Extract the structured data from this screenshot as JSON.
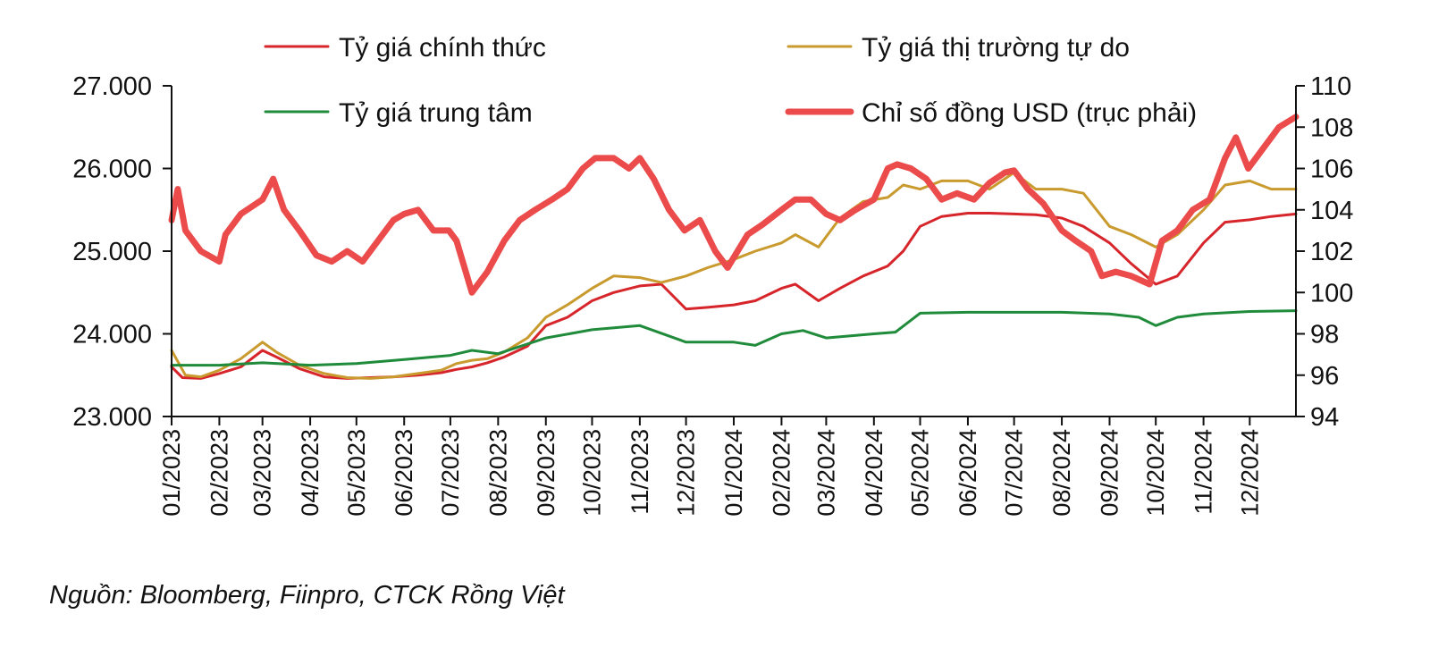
{
  "source_note": "Nguồn: Bloomberg, Fiinpro, CTCK Rồng Việt",
  "chart_data": {
    "type": "line",
    "title": "",
    "xlabel": "",
    "ylabel": "",
    "legend_position": "top",
    "grid": false,
    "y_left": {
      "range": [
        23000,
        27000
      ],
      "ticks": [
        23000,
        24000,
        25000,
        26000,
        27000
      ],
      "tick_labels": [
        "23.000",
        "24.000",
        "25.000",
        "26.000",
        "27.000"
      ]
    },
    "y_right": {
      "range": [
        94,
        110
      ],
      "ticks": [
        94,
        96,
        98,
        100,
        102,
        104,
        106,
        108,
        110
      ],
      "tick_labels": [
        "94",
        "96",
        "98",
        "100",
        "102",
        "104",
        "106",
        "108",
        "110"
      ]
    },
    "x_ticks": [
      "01/2023",
      "02/2023",
      "03/2023",
      "04/2023",
      "05/2023",
      "06/2023",
      "07/2023",
      "08/2023",
      "09/2023",
      "10/2023",
      "11/2023",
      "12/2023",
      "01/2024",
      "02/2024",
      "03/2024",
      "04/2024",
      "05/2024",
      "06/2024",
      "07/2024",
      "08/2024",
      "09/2024",
      "10/2024",
      "11/2024",
      "12/2024"
    ],
    "series": [
      {
        "name": "Tỷ giá chính thức",
        "axis": "left",
        "color": "#d7262b",
        "width": 3,
        "x": [
          "2023-01-01",
          "2023-01-08",
          "2023-01-20",
          "2023-02-01",
          "2023-02-15",
          "2023-03-01",
          "2023-03-10",
          "2023-03-25",
          "2023-04-10",
          "2023-04-25",
          "2023-05-10",
          "2023-05-25",
          "2023-06-10",
          "2023-06-25",
          "2023-07-05",
          "2023-07-15",
          "2023-07-25",
          "2023-08-05",
          "2023-08-20",
          "2023-09-01",
          "2023-09-15",
          "2023-10-01",
          "2023-10-15",
          "2023-11-01",
          "2023-11-15",
          "2023-12-01",
          "2023-12-15",
          "2024-01-01",
          "2024-01-15",
          "2024-02-01",
          "2024-02-10",
          "2024-02-25",
          "2024-03-10",
          "2024-03-25",
          "2024-04-10",
          "2024-04-20",
          "2024-05-01",
          "2024-05-15",
          "2024-06-01",
          "2024-06-15",
          "2024-07-01",
          "2024-07-15",
          "2024-08-01",
          "2024-08-15",
          "2024-09-01",
          "2024-09-15",
          "2024-10-01",
          "2024-10-15",
          "2024-11-01",
          "2024-11-15",
          "2024-12-01",
          "2024-12-15",
          "2024-12-31"
        ],
        "values": [
          23600,
          23470,
          23460,
          23520,
          23600,
          23800,
          23720,
          23580,
          23480,
          23460,
          23470,
          23480,
          23500,
          23530,
          23570,
          23600,
          23650,
          23720,
          23850,
          24100,
          24200,
          24400,
          24500,
          24580,
          24600,
          24300,
          24320,
          24350,
          24400,
          24550,
          24600,
          24400,
          24550,
          24700,
          24820,
          25000,
          25300,
          25420,
          25460,
          25460,
          25450,
          25440,
          25400,
          25300,
          25100,
          24850,
          24600,
          24700,
          25100,
          25350,
          25380,
          25420,
          25450
        ]
      },
      {
        "name": "Tỷ giá thị trường tự do",
        "axis": "left",
        "color": "#c99a2e",
        "width": 3,
        "x": [
          "2023-01-01",
          "2023-01-10",
          "2023-01-20",
          "2023-02-01",
          "2023-02-15",
          "2023-03-01",
          "2023-03-10",
          "2023-03-25",
          "2023-04-10",
          "2023-04-25",
          "2023-05-10",
          "2023-05-25",
          "2023-06-10",
          "2023-06-25",
          "2023-07-05",
          "2023-07-15",
          "2023-07-25",
          "2023-08-05",
          "2023-08-20",
          "2023-09-01",
          "2023-09-15",
          "2023-10-01",
          "2023-10-15",
          "2023-11-01",
          "2023-11-15",
          "2023-12-01",
          "2023-12-15",
          "2024-01-01",
          "2024-01-15",
          "2024-02-01",
          "2024-02-10",
          "2024-02-25",
          "2024-03-10",
          "2024-03-25",
          "2024-04-10",
          "2024-04-20",
          "2024-05-01",
          "2024-05-15",
          "2024-06-01",
          "2024-06-15",
          "2024-07-01",
          "2024-07-15",
          "2024-08-01",
          "2024-08-15",
          "2024-09-01",
          "2024-09-15",
          "2024-10-01",
          "2024-10-15",
          "2024-11-01",
          "2024-11-15",
          "2024-12-01",
          "2024-12-15",
          "2024-12-31"
        ],
        "values": [
          23800,
          23500,
          23480,
          23560,
          23700,
          23900,
          23780,
          23620,
          23520,
          23470,
          23460,
          23480,
          23520,
          23560,
          23640,
          23680,
          23700,
          23780,
          23950,
          24200,
          24350,
          24550,
          24700,
          24680,
          24620,
          24700,
          24800,
          24900,
          25000,
          25100,
          25200,
          25050,
          25400,
          25600,
          25650,
          25800,
          25750,
          25850,
          25850,
          25750,
          25950,
          25750,
          25750,
          25700,
          25300,
          25200,
          25050,
          25200,
          25500,
          25800,
          25850,
          25750,
          25750
        ]
      },
      {
        "name": "Tỷ giá trung tâm",
        "axis": "left",
        "color": "#1f8b3b",
        "width": 3,
        "x": [
          "2023-01-01",
          "2023-02-01",
          "2023-03-01",
          "2023-04-01",
          "2023-05-01",
          "2023-06-01",
          "2023-07-01",
          "2023-07-15",
          "2023-08-01",
          "2023-09-01",
          "2023-10-01",
          "2023-11-01",
          "2023-12-01",
          "2024-01-01",
          "2024-01-15",
          "2024-02-01",
          "2024-02-15",
          "2024-03-01",
          "2024-04-01",
          "2024-04-15",
          "2024-05-01",
          "2024-06-01",
          "2024-07-01",
          "2024-08-01",
          "2024-09-01",
          "2024-09-20",
          "2024-10-01",
          "2024-10-15",
          "2024-11-01",
          "2024-12-01",
          "2024-12-31"
        ],
        "values": [
          23620,
          23620,
          23650,
          23620,
          23640,
          23690,
          23740,
          23800,
          23760,
          23950,
          24050,
          24100,
          23900,
          23900,
          23860,
          24000,
          24040,
          23950,
          24000,
          24020,
          24250,
          24260,
          24260,
          24260,
          24240,
          24200,
          24100,
          24200,
          24240,
          24270,
          24280
        ]
      },
      {
        "name": "Chỉ số đồng USD (trục phải)",
        "axis": "right",
        "color": "#eb4b4b",
        "width": 7,
        "x": [
          "2023-01-01",
          "2023-01-05",
          "2023-01-10",
          "2023-01-20",
          "2023-02-01",
          "2023-02-05",
          "2023-02-15",
          "2023-03-01",
          "2023-03-08",
          "2023-03-15",
          "2023-03-25",
          "2023-04-05",
          "2023-04-15",
          "2023-04-25",
          "2023-05-05",
          "2023-05-15",
          "2023-05-25",
          "2023-06-01",
          "2023-06-10",
          "2023-06-20",
          "2023-06-30",
          "2023-07-05",
          "2023-07-15",
          "2023-07-25",
          "2023-08-05",
          "2023-08-15",
          "2023-08-25",
          "2023-09-05",
          "2023-09-15",
          "2023-09-25",
          "2023-10-03",
          "2023-10-15",
          "2023-10-25",
          "2023-11-01",
          "2023-11-10",
          "2023-11-20",
          "2023-11-30",
          "2023-12-10",
          "2023-12-20",
          "2023-12-28",
          "2024-01-10",
          "2024-01-20",
          "2024-02-01",
          "2024-02-10",
          "2024-02-20",
          "2024-03-01",
          "2024-03-10",
          "2024-03-20",
          "2024-04-01",
          "2024-04-10",
          "2024-04-16",
          "2024-04-25",
          "2024-05-05",
          "2024-05-15",
          "2024-05-25",
          "2024-06-05",
          "2024-06-15",
          "2024-06-25",
          "2024-07-01",
          "2024-07-10",
          "2024-07-20",
          "2024-08-01",
          "2024-08-10",
          "2024-08-20",
          "2024-08-27",
          "2024-09-05",
          "2024-09-15",
          "2024-09-27",
          "2024-10-05",
          "2024-10-15",
          "2024-10-25",
          "2024-11-05",
          "2024-11-15",
          "2024-11-22",
          "2024-11-30",
          "2024-12-10",
          "2024-12-20",
          "2024-12-31"
        ],
        "values": [
          103.5,
          105.0,
          103.0,
          102.0,
          101.5,
          102.8,
          103.8,
          104.5,
          105.5,
          104.0,
          103.0,
          101.8,
          101.5,
          102.0,
          101.5,
          102.5,
          103.5,
          103.8,
          104.0,
          103.0,
          103.0,
          102.5,
          100.0,
          101.0,
          102.5,
          103.5,
          104.0,
          104.5,
          105.0,
          106.0,
          106.5,
          106.5,
          106.0,
          106.5,
          105.5,
          104.0,
          103.0,
          103.5,
          102.0,
          101.2,
          102.8,
          103.3,
          104.0,
          104.5,
          104.5,
          103.8,
          103.5,
          104.0,
          104.5,
          106.0,
          106.2,
          106.0,
          105.5,
          104.5,
          104.8,
          104.5,
          105.3,
          105.8,
          105.9,
          105.0,
          104.3,
          103.0,
          102.5,
          102.0,
          100.8,
          101.0,
          100.8,
          100.4,
          102.5,
          103.0,
          104.0,
          104.5,
          106.5,
          107.5,
          106.0,
          107.0,
          108.0,
          108.5
        ]
      }
    ]
  }
}
